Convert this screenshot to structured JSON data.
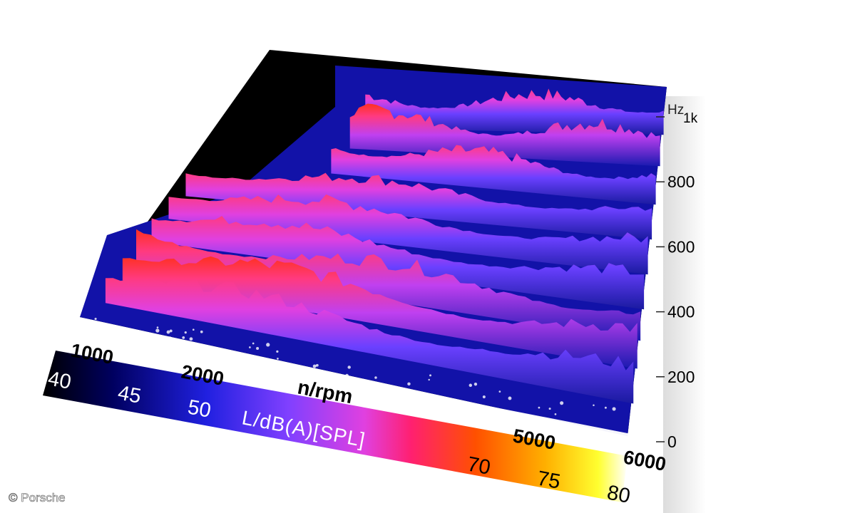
{
  "chart_data": {
    "type": "heatmap",
    "title": "",
    "xlabel": "n/rpm",
    "ylabel": "Hz",
    "zlabel": "L/dB(A)[SPL]",
    "x_ticks": [
      "1000",
      "2000",
      "5000",
      "6000"
    ],
    "x_tick_values": [
      1000,
      2000,
      5000,
      6000
    ],
    "xlim": [
      1000,
      6000
    ],
    "y_ticks": [
      "0",
      "200",
      "400",
      "600",
      "800",
      "1k"
    ],
    "y_tick_values": [
      0,
      200,
      400,
      600,
      800,
      1000
    ],
    "ylim": [
      0,
      1000
    ],
    "colorbar_ticks": [
      "40",
      "45",
      "50",
      "70",
      "75",
      "80"
    ],
    "colorbar_tick_values": [
      40,
      45,
      50,
      70,
      75,
      80
    ],
    "zlim": [
      40,
      80
    ],
    "colorscale": [
      "#000000",
      "#000080",
      "#2020ff",
      "#8040ff",
      "#e040e0",
      "#ff2060",
      "#ff6000",
      "#ffa000",
      "#ffff00",
      "#ffffff"
    ],
    "ridges": [
      {
        "hz": 150,
        "peak_db": 62
      },
      {
        "hz": 250,
        "peak_db": 64
      },
      {
        "hz": 330,
        "peak_db": 63
      },
      {
        "hz": 420,
        "peak_db": 61
      },
      {
        "hz": 520,
        "peak_db": 61
      },
      {
        "hz": 620,
        "peak_db": 60
      },
      {
        "hz": 720,
        "peak_db": 61
      },
      {
        "hz": 830,
        "peak_db": 63
      },
      {
        "hz": 920,
        "peak_db": 62
      }
    ]
  },
  "credit": "© Porsche"
}
